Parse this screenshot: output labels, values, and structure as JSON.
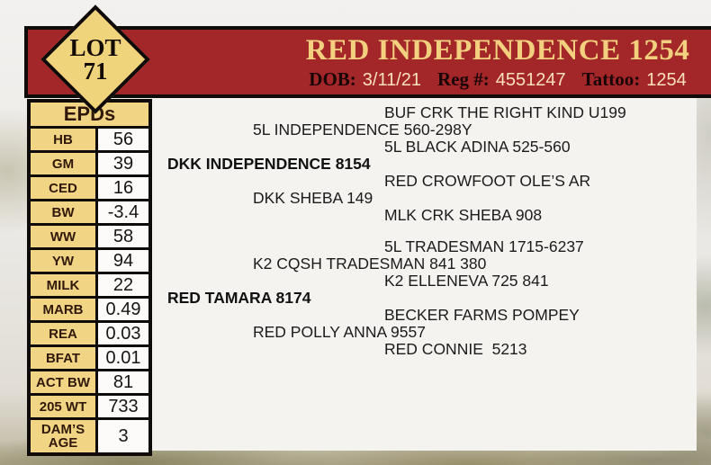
{
  "badge": {
    "line1": "LOT",
    "line2": "71"
  },
  "header": {
    "title": "RED INDEPENDENCE 1254",
    "dob_label": "DOB:",
    "dob_value": "3/11/21",
    "reg_label": "Reg #:",
    "reg_value": "4551247",
    "tattoo_label": "Tattoo:",
    "tattoo_value": "1254"
  },
  "epd_table": {
    "header": "EPDs",
    "rows": [
      {
        "label": "HB",
        "value": "56"
      },
      {
        "label": "GM",
        "value": "39"
      },
      {
        "label": "CED",
        "value": "16"
      },
      {
        "label": "BW",
        "value": "-3.4"
      },
      {
        "label": "WW",
        "value": "58"
      },
      {
        "label": "YW",
        "value": "94"
      },
      {
        "label": "MILK",
        "value": "22"
      },
      {
        "label": "MARB",
        "value": "0.49"
      },
      {
        "label": "REA",
        "value": "0.03"
      },
      {
        "label": "BFAT",
        "value": "0.01"
      },
      {
        "label": "ACT BW",
        "value": "81"
      },
      {
        "label": "205 WT",
        "value": "733"
      },
      {
        "label": "DAM’S AGE",
        "value": "3"
      }
    ]
  },
  "pedigree": {
    "lines": [
      {
        "gen": 3,
        "text": "BUF CRK THE RIGHT KIND U199"
      },
      {
        "gen": 2,
        "text": "5L INDEPENDENCE 560-298Y"
      },
      {
        "gen": 3,
        "text": "5L BLACK ADINA 525-560"
      },
      {
        "gen": 1,
        "text": "DKK INDEPENDENCE 8154"
      },
      {
        "gen": 3,
        "text": "RED CROWFOOT OLE’S AR"
      },
      {
        "gen": 2,
        "text": "DKK SHEBA 149"
      },
      {
        "gen": 3,
        "text": "MLK CRK SHEBA 908"
      },
      {
        "gen": 3,
        "text": "5L TRADESMAN 1715-6237"
      },
      {
        "gen": 2,
        "text": "K2 CQSH TRADESMAN 841 380"
      },
      {
        "gen": 3,
        "text": "K2 ELLENEVA 725 841"
      },
      {
        "gen": 1,
        "text": "RED TAMARA 8174"
      },
      {
        "gen": 3,
        "text": "BECKER FARMS POMPEY"
      },
      {
        "gen": 2,
        "text": "RED POLLY ANNA 9557"
      },
      {
        "gen": 3,
        "text": "RED CONNIE  5213"
      }
    ]
  },
  "colors": {
    "bar_red": "#a32629",
    "badge_gold": "#efd47c",
    "title_gold": "#f3d07e",
    "value_cream": "#f9e2ba",
    "epd_label_gold": "#f1d584",
    "panel_white": "#f4f3f0",
    "border_black": "#0f0b08"
  }
}
